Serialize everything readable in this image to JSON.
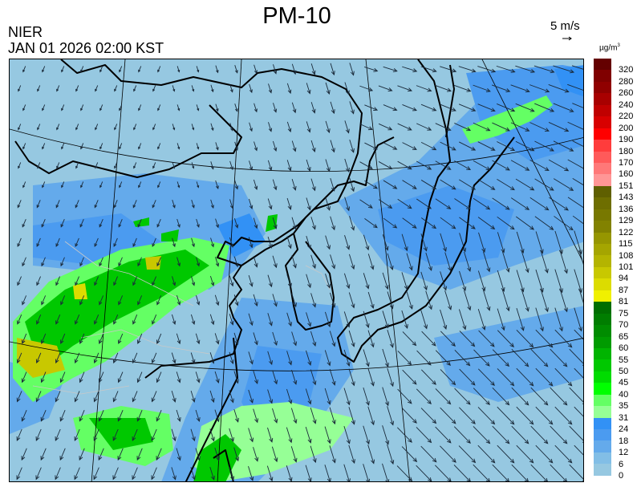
{
  "header": {
    "title": "PM-10",
    "org": "NIER",
    "datetime": "JAN 01 2026 02:00 KST",
    "wind_scale_label": "5 m/s",
    "unit": "µg/m",
    "unit_sup": "3"
  },
  "legend": {
    "labels": [
      "320",
      "280",
      "260",
      "240",
      "220",
      "200",
      "190",
      "180",
      "170",
      "160",
      "151",
      "143",
      "136",
      "129",
      "122",
      "115",
      "108",
      "101",
      "94",
      "87",
      "81",
      "75",
      "70",
      "65",
      "60",
      "55",
      "50",
      "45",
      "40",
      "35",
      "31",
      "24",
      "18",
      "12",
      "6",
      "0"
    ],
    "colors": [
      "#640000",
      "#800000",
      "#900000",
      "#a80000",
      "#c00000",
      "#d80000",
      "#ff0000",
      "#ff3c3c",
      "#ff5a5a",
      "#ff7878",
      "#ff9696",
      "#5f5f00",
      "#6e6e00",
      "#787800",
      "#828200",
      "#969600",
      "#a5a500",
      "#b4b400",
      "#c8c800",
      "#dcdc00",
      "#f0f000",
      "#006e00",
      "#007d00",
      "#008c00",
      "#009b00",
      "#00b400",
      "#00c800",
      "#00dc00",
      "#00ff00",
      "#64ff64",
      "#96ff96",
      "#3291f5",
      "#4b9bf0",
      "#64aaeb",
      "#82bee6",
      "#96c8e1"
    ]
  },
  "map": {
    "base_color": "#96c8e1"
  }
}
